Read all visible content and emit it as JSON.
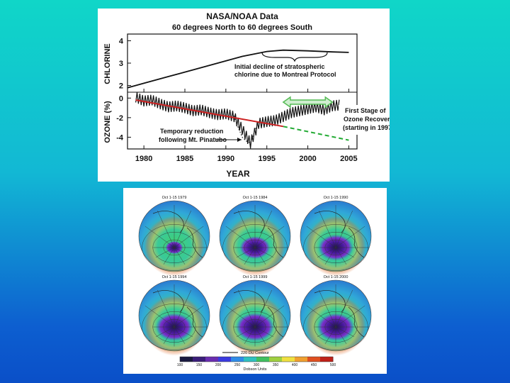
{
  "chart_data": {
    "type": "line",
    "title": "NASA/NOAA Data",
    "subtitle": "60 degrees North to 60 degrees South",
    "xlabel": "YEAR",
    "x_ticks": [
      "1980",
      "1985",
      "1990",
      "1995",
      "2000",
      "2005"
    ],
    "xlim": [
      1978,
      2006
    ],
    "panels": [
      {
        "ylabel": "CHLORINE",
        "y_ticks": [
          "2",
          "3",
          "4"
        ],
        "ylim": [
          1.7,
          4.3
        ],
        "series": [
          {
            "x": [
              1978,
              1980,
              1983,
              1986,
              1989,
              1992,
              1995,
              1997,
              2000,
              2003,
              2005
            ],
            "y": [
              1.9,
              2.1,
              2.4,
              2.7,
              3.0,
              3.3,
              3.52,
              3.58,
              3.55,
              3.5,
              3.48
            ]
          }
        ],
        "annotation": [
          "Initial decline of stratospheric",
          "chlorine due to Montreal Protocol"
        ]
      },
      {
        "ylabel": "OZONE (%)",
        "y_ticks": [
          "0",
          "-2",
          "-4"
        ],
        "ylim": [
          -5.2,
          0.6
        ],
        "observed": {
          "x": [
            1979,
            1980,
            1981,
            1982,
            1983,
            1984,
            1985,
            1986,
            1987,
            1988,
            1989,
            1990,
            1991,
            1992,
            1993,
            1994,
            1995,
            1996,
            1997,
            1998,
            1999,
            2000,
            2001,
            2002,
            2003,
            2004
          ],
          "y": [
            0.1,
            -0.3,
            -0.2,
            -0.6,
            -0.9,
            -0.8,
            -1.0,
            -1.3,
            -1.2,
            -1.5,
            -1.7,
            -1.6,
            -1.9,
            -3.2,
            -4.6,
            -2.6,
            -2.4,
            -2.3,
            -1.9,
            -1.5,
            -1.3,
            -1.1,
            -0.9,
            -1.2,
            -0.8,
            -0.7
          ]
        },
        "trend": {
          "x": [
            1979,
            1997
          ],
          "y": [
            -0.2,
            -2.9
          ]
        },
        "projected_trend": {
          "x": [
            1997,
            2005
          ],
          "y": [
            -2.9,
            -4.3
          ]
        },
        "pinatubo_dip": {
          "x": [
            1991,
            1991.5,
            1992,
            1992.5,
            1993,
            1993.5,
            1994
          ],
          "y": [
            -1.8,
            -3.0,
            -4.0,
            -4.4,
            -4.6,
            -3.4,
            -2.4
          ]
        },
        "recovery_span": [
          1997,
          2003
        ],
        "annotations": [
          [
            "Temporary reduction",
            "following Mt. Pinatubo"
          ],
          [
            "First Stage of",
            "Ozone Recovery",
            "(starting in 1997)"
          ]
        ]
      }
    ],
    "maps": {
      "titles": [
        "Oct 1-15 1979",
        "Oct 1-15 1984",
        "Oct 1-15 1990",
        "Oct 1-15 1994",
        "Oct 1-15 1999",
        "Oct 1-15 2000"
      ],
      "hole_size": [
        0.15,
        0.45,
        0.55,
        0.6,
        0.62,
        0.6
      ],
      "contour_label": "220 DU Contour",
      "colorbar_ticks": [
        "100",
        "150",
        "200",
        "250",
        "300",
        "350",
        "400",
        "450",
        "500"
      ],
      "colorbar_unit": "Dobson Units",
      "colorbar_colors": [
        "#1a1a40",
        "#3b1e7a",
        "#6a2db0",
        "#3a3ae0",
        "#2f8ce8",
        "#30c0c0",
        "#40c060",
        "#9fd040",
        "#f0e040",
        "#f0a030",
        "#e05020",
        "#c02018"
      ]
    },
    "colors": {
      "data_line": "#111111",
      "trend_line": "#cc2222",
      "projected_line": "#22aa33",
      "recovery_arrow": "#55bb55"
    }
  }
}
